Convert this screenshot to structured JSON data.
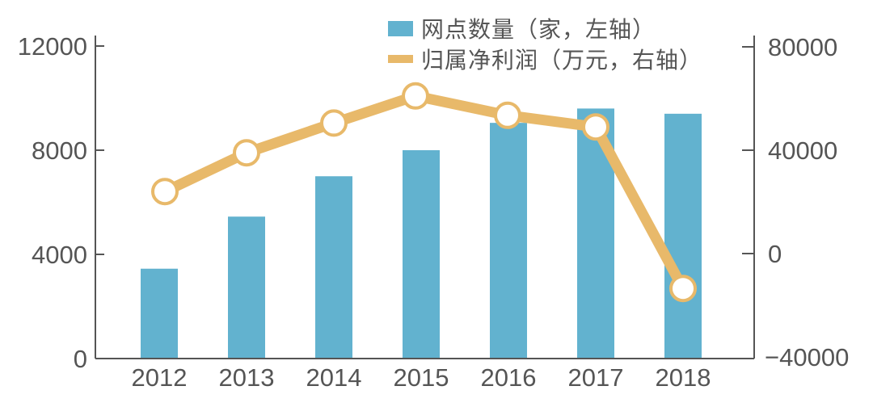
{
  "chart_data": {
    "type": "bar+line",
    "title": "",
    "categories": [
      "2012",
      "2013",
      "2014",
      "2015",
      "2016",
      "2017",
      "2018"
    ],
    "series": [
      {
        "name": "网点数量（家，左轴）",
        "type": "bar",
        "axis": "left",
        "color": "#62B2CF",
        "values": [
          3450,
          5450,
          7000,
          8000,
          9050,
          9600,
          9400
        ]
      },
      {
        "name": "归属净利润（万元，右轴）",
        "type": "line",
        "axis": "right",
        "color": "#E8B96A",
        "values": [
          24000,
          39000,
          50500,
          61000,
          53500,
          49000,
          -13500
        ]
      }
    ],
    "left_axis": {
      "ticks": [
        "12000",
        "8000",
        "4000",
        "0"
      ],
      "ylim": [
        0,
        12000
      ]
    },
    "right_axis": {
      "ticks": [
        "80000",
        "40000",
        "0",
        "−40000"
      ],
      "ylim": [
        -40000,
        80000
      ]
    },
    "xlabel": "",
    "ylabel": "",
    "grid": false,
    "legend_position": "top-center"
  },
  "legend": {
    "items": [
      {
        "label": "网点数量（家，左轴）",
        "color": "#62B2CF",
        "shape": "rect"
      },
      {
        "label": "归属净利润（万元，右轴）",
        "color": "#E8B96A",
        "shape": "line"
      }
    ]
  }
}
